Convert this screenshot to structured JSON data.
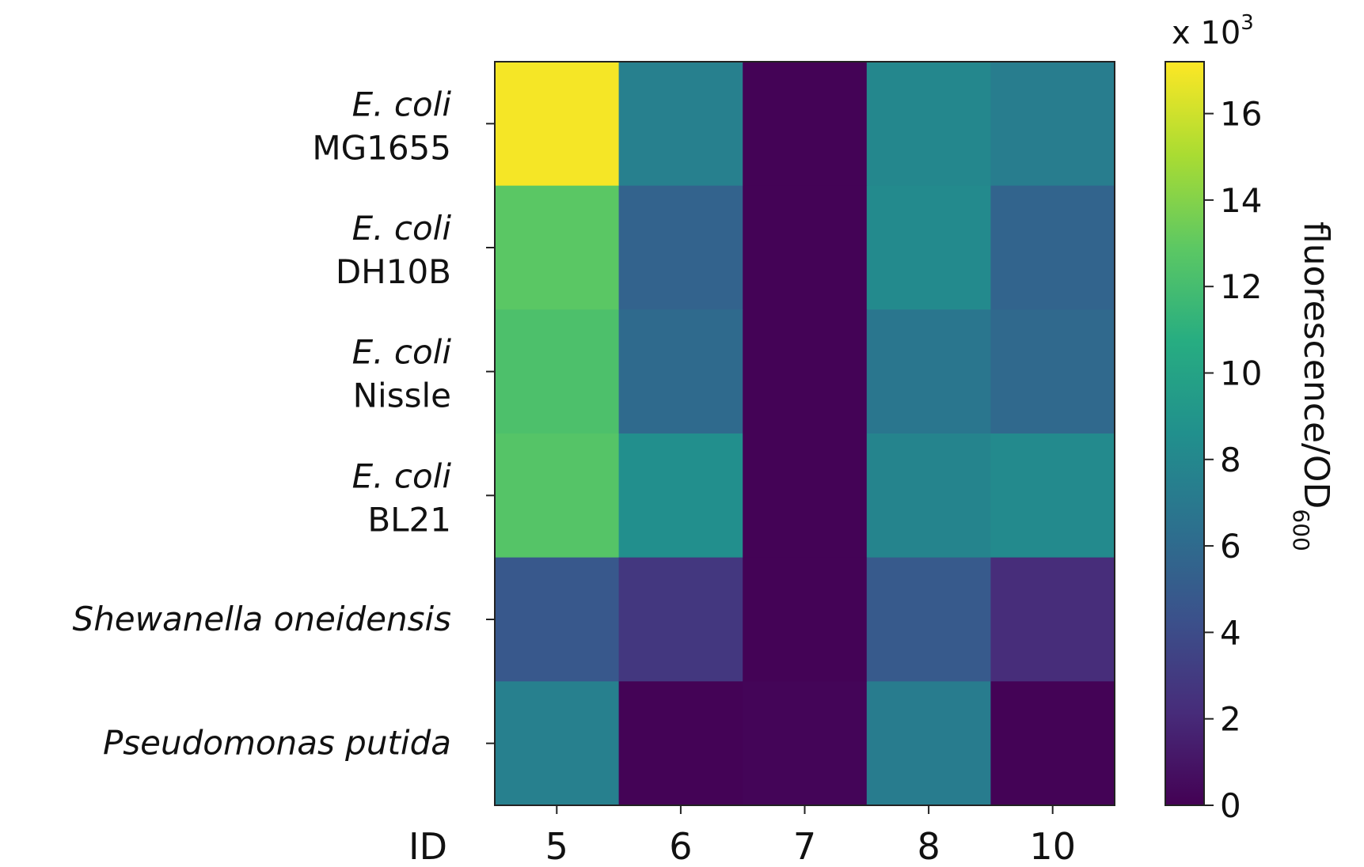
{
  "chart_data": {
    "type": "heatmap",
    "x_axis_label": "ID",
    "x_categories": [
      "5",
      "6",
      "7",
      "8",
      "10"
    ],
    "rows": [
      {
        "italic": "E. coli",
        "plain": "MG1655"
      },
      {
        "italic": "E. coli",
        "plain": "DH10B"
      },
      {
        "italic": "E. coli",
        "plain": "Nissle"
      },
      {
        "italic": "E. coli",
        "plain": "BL21"
      },
      {
        "italic": "Shewanella oneidensis",
        "plain": ""
      },
      {
        "italic": "Pseudomonas putida",
        "plain": ""
      }
    ],
    "values": [
      [
        17.0,
        7.5,
        0.1,
        8.0,
        7.3
      ],
      [
        12.8,
        5.5,
        0.1,
        8.2,
        5.6
      ],
      [
        12.3,
        6.0,
        0.1,
        6.8,
        5.9
      ],
      [
        12.6,
        8.5,
        0.1,
        7.8,
        8.2
      ],
      [
        4.8,
        2.8,
        0.1,
        4.9,
        2.2
      ],
      [
        7.5,
        0.1,
        0.2,
        7.2,
        0.1
      ]
    ],
    "colorbar": {
      "range": [
        0,
        17.2
      ],
      "ticks": [
        "0",
        "2",
        "4",
        "6",
        "8",
        "10",
        "12",
        "14",
        "16"
      ],
      "multiplier": "x 10",
      "multiplier_exp": "3",
      "label": "fluorescence/OD",
      "label_sub": "600",
      "colormap": "viridis"
    }
  }
}
